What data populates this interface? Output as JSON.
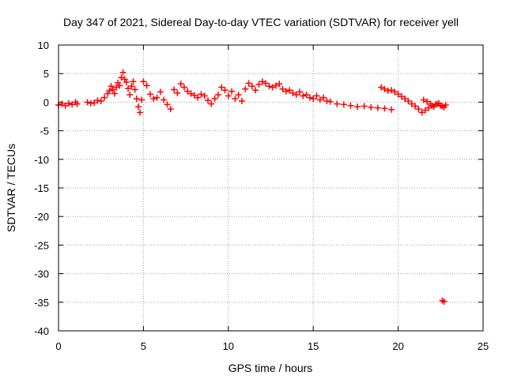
{
  "chart_data": {
    "type": "scatter",
    "title": "Day 347 of 2021, Sidereal Day-to-day VTEC variation (SDTVAR) for receiver yell",
    "xlabel": "GPS time / hours",
    "ylabel": "SDTVAR / TECUs",
    "xlim": [
      0,
      25
    ],
    "ylim": [
      -40,
      10
    ],
    "xticks": [
      0,
      5,
      10,
      15,
      20,
      25
    ],
    "yticks": [
      10,
      5,
      0,
      -5,
      -10,
      -15,
      -20,
      -25,
      -30,
      -35,
      -40
    ],
    "grid": true,
    "marker": "plus",
    "color": "#ff0000",
    "series": [
      {
        "name": "SDTVAR",
        "x": [
          0.0,
          0.2,
          0.4,
          0.6,
          0.8,
          1.0,
          1.1,
          1.7,
          1.9,
          2.1,
          2.3,
          2.5,
          2.7,
          2.9,
          3.0,
          3.1,
          3.2,
          3.3,
          3.4,
          3.5,
          3.6,
          3.7,
          3.8,
          3.9,
          4.0,
          4.1,
          4.2,
          4.3,
          4.4,
          4.5,
          4.6,
          4.7,
          4.8,
          4.9,
          5.0,
          5.2,
          5.4,
          5.6,
          5.8,
          6.0,
          6.2,
          6.4,
          6.6,
          6.8,
          7.0,
          7.2,
          7.4,
          7.6,
          7.8,
          8.0,
          8.2,
          8.4,
          8.6,
          8.8,
          9.0,
          9.2,
          9.4,
          9.6,
          9.8,
          10.0,
          10.2,
          10.4,
          10.6,
          10.8,
          11.0,
          11.2,
          11.4,
          11.6,
          11.8,
          12.0,
          12.2,
          12.4,
          12.6,
          12.8,
          13.0,
          13.2,
          13.4,
          13.6,
          13.8,
          14.0,
          14.2,
          14.4,
          14.6,
          14.8,
          15.0,
          15.2,
          15.4,
          15.6,
          15.8,
          16.0,
          16.4,
          16.8,
          17.2,
          17.6,
          18.0,
          18.4,
          18.8,
          19.2,
          19.6,
          19.0,
          19.2,
          19.4,
          19.6,
          19.8,
          20.0,
          20.2,
          20.4,
          20.6,
          20.8,
          21.0,
          21.2,
          21.4,
          21.6,
          21.8,
          22.0,
          22.2,
          22.4,
          22.6,
          22.8,
          21.5,
          21.7,
          21.9,
          22.1,
          22.3,
          22.5,
          22.7,
          22.6,
          22.7
        ],
        "y": [
          -0.5,
          -0.3,
          -0.6,
          -0.2,
          -0.4,
          0.0,
          -0.3,
          0.0,
          -0.2,
          -0.1,
          0.3,
          0.2,
          0.8,
          1.5,
          2.0,
          2.8,
          2.2,
          1.5,
          2.6,
          3.4,
          2.9,
          4.3,
          5.2,
          4.0,
          3.5,
          2.4,
          1.3,
          2.8,
          3.6,
          2.2,
          0.6,
          -0.8,
          -1.8,
          0.4,
          3.6,
          2.9,
          1.4,
          0.6,
          0.8,
          1.8,
          0.4,
          -0.4,
          -1.2,
          2.2,
          1.6,
          3.2,
          2.6,
          1.9,
          1.5,
          1.2,
          0.8,
          1.4,
          1.1,
          0.3,
          -0.3,
          0.6,
          1.3,
          2.6,
          2.1,
          1.1,
          1.9,
          0.6,
          1.3,
          0.2,
          2.3,
          3.3,
          2.8,
          2.1,
          3.1,
          3.6,
          3.3,
          2.8,
          2.6,
          2.9,
          3.2,
          2.3,
          1.9,
          2.1,
          1.6,
          1.3,
          1.8,
          1.1,
          1.3,
          0.8,
          0.6,
          1.1,
          0.4,
          0.8,
          0.2,
          0.1,
          -0.3,
          -0.4,
          -0.6,
          -0.8,
          -0.7,
          -0.9,
          -1.0,
          -1.1,
          -1.3,
          2.6,
          2.3,
          2.0,
          2.1,
          1.8,
          1.4,
          1.0,
          0.6,
          0.2,
          -0.3,
          -0.7,
          -1.2,
          -1.8,
          -1.4,
          -1.0,
          -0.6,
          -0.4,
          -0.2,
          -0.7,
          -0.5,
          0.4,
          0.1,
          -0.3,
          -0.8,
          -0.3,
          -0.6,
          -0.9,
          -34.7,
          -34.9
        ]
      }
    ]
  }
}
